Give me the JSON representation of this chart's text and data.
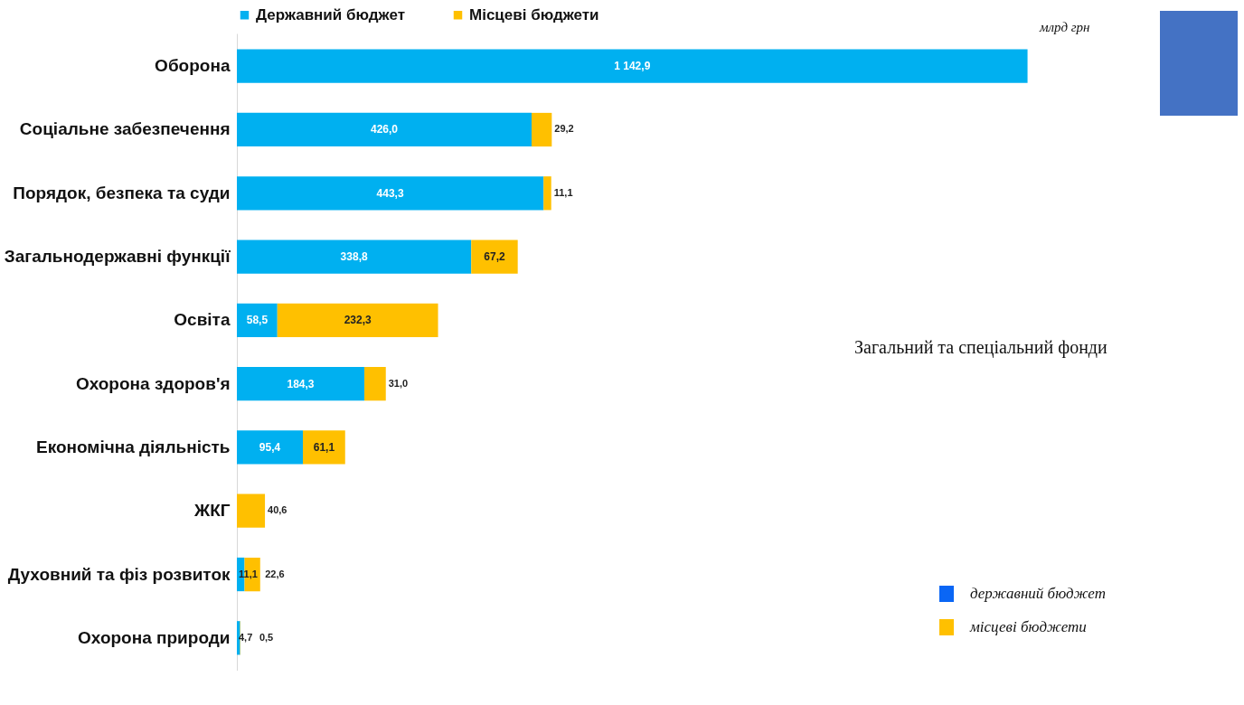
{
  "chart_data": {
    "type": "bar",
    "orientation": "horizontal",
    "stacked": true,
    "legend": "top",
    "categories": [
      "Оборона",
      "Соціальне забезпечення",
      "Порядок, безпека та суди",
      "Загальнодержавні функції",
      "Освіта",
      "Охорона здоров'я",
      "Економічна діяльність",
      "ЖКГ",
      "Духовний та фіз розвиток",
      "Охорона природи"
    ],
    "series": [
      {
        "name": "Державний бюджет",
        "color": "#00b0f0",
        "values": [
          1142.9,
          426.0,
          443.3,
          338.8,
          58.5,
          184.3,
          95.4,
          null,
          11.1,
          4.7
        ],
        "value_labels": [
          "1 142,9",
          "426,0",
          "443,3",
          "338,8",
          "58,5",
          "184,3",
          "95,4",
          null,
          "11,1",
          "4,7"
        ]
      },
      {
        "name": "Місцеві бюджети",
        "color": "#ffc000",
        "values": [
          null,
          29.2,
          11.1,
          67.2,
          232.3,
          31.0,
          61.1,
          40.6,
          22.6,
          0.5
        ],
        "value_labels": [
          null,
          "29,2",
          "11,1",
          "67,2",
          "232,3",
          "31,0",
          "61,1",
          "40,6",
          "22,6",
          "0,5"
        ]
      }
    ],
    "xlim": [
      0,
      1150
    ],
    "tick_labels": "y",
    "annotations": [
      "млрд грн",
      "Загальний та спеціальний фонди",
      "державний бюджет",
      "місцеві бюджети"
    ]
  }
}
